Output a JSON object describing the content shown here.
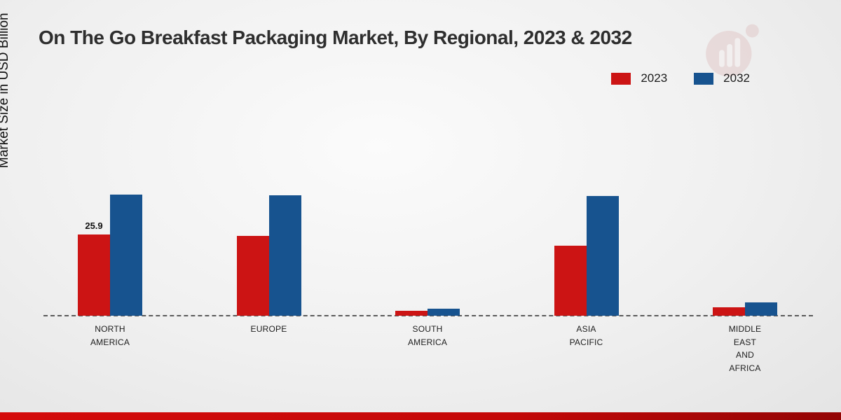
{
  "chart_data": {
    "type": "bar",
    "title": "On The Go Breakfast Packaging Market, By Regional, 2023 & 2032",
    "ylabel": "Market Size in USD Billion",
    "xlabel": "",
    "ylim": [
      0,
      45
    ],
    "grid": false,
    "legend_position": "top-right",
    "baseline_style": "dashed",
    "categories": [
      "NORTH AMERICA",
      "EUROPE",
      "SOUTH AMERICA",
      "ASIA PACIFIC",
      "MIDDLE EAST AND AFRICA"
    ],
    "category_label_lines": [
      [
        "NORTH",
        "AMERICA"
      ],
      [
        "EUROPE"
      ],
      [
        "SOUTH",
        "AMERICA"
      ],
      [
        "ASIA",
        "PACIFIC"
      ],
      [
        "MIDDLE",
        "EAST",
        "AND",
        "AFRICA"
      ]
    ],
    "series": [
      {
        "name": "2023",
        "color": "#cc1414",
        "values": [
          25.9,
          25.5,
          1.5,
          22.3,
          2.8
        ]
      },
      {
        "name": "2032",
        "color": "#17538f",
        "values": [
          38.8,
          38.5,
          2.3,
          38.2,
          4.2
        ]
      }
    ],
    "annotations": [
      {
        "category_index": 0,
        "series_index": 0,
        "text": "25.9"
      }
    ]
  },
  "footer": {
    "stripe_color": "#c40808"
  },
  "watermark": {
    "name": "market-research-logo",
    "color": "#e2c9c9"
  }
}
